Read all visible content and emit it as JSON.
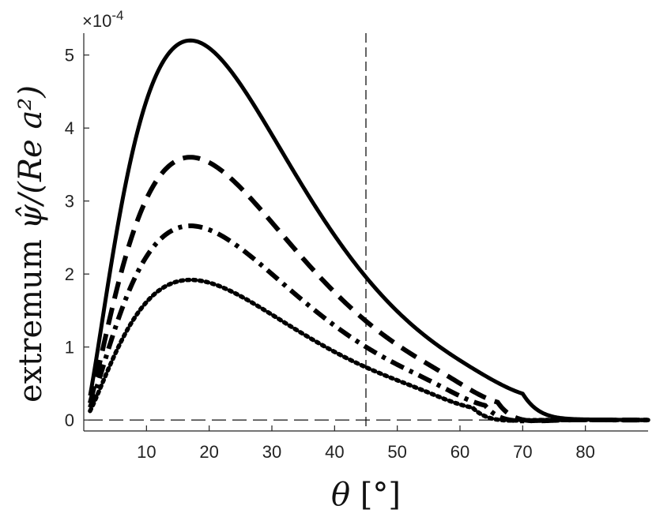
{
  "chart_data": {
    "type": "line",
    "title": "",
    "xlabel": {
      "symbol": "θ",
      "unit": "[°]"
    },
    "ylabel": {
      "prefix": "extremum",
      "symbol": "ψ̂",
      "rest": "/(Re a²)"
    },
    "y_exponent_label": "×10-4",
    "xlim": [
      0,
      90
    ],
    "ylim": [
      -0.15,
      5.3
    ],
    "xticks": [
      "10",
      "20",
      "30",
      "40",
      "50",
      "60",
      "70",
      "80"
    ],
    "yticks": [
      "0",
      "1",
      "2",
      "3",
      "4",
      "5"
    ],
    "grid": false,
    "legend": "none",
    "vertical_reference_x": 45,
    "horizontal_reference_y": 0,
    "series": [
      {
        "style": "solid",
        "amplitude": 5.2,
        "min_value": -0.08,
        "min_at": 70
      },
      {
        "style": "dashed",
        "amplitude": 3.6,
        "min_value": -0.15,
        "min_at": 66
      },
      {
        "style": "dashdot",
        "amplitude": 2.66,
        "min_value": -0.13,
        "min_at": 64
      },
      {
        "style": "dotted",
        "amplitude": 1.92,
        "min_value": -0.1,
        "min_at": 62
      }
    ]
  }
}
